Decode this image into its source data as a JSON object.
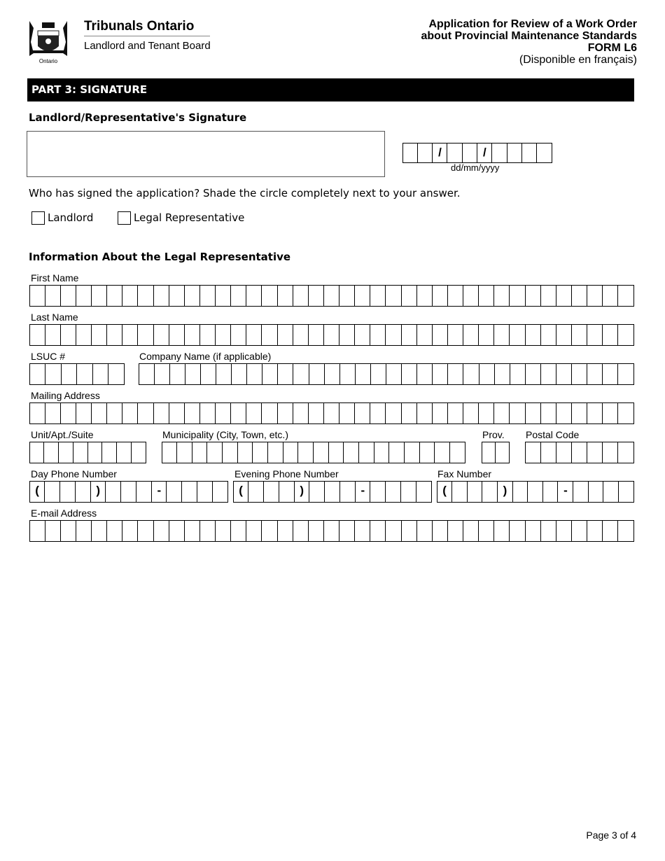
{
  "header": {
    "logo_text": "Ontario",
    "org_name": "Tribunals Ontario",
    "board_name": "Landlord and Tenant Board",
    "form_title_line1": "Application for Review of a Work Order",
    "form_title_line2": "about Provincial Maintenance Standards",
    "form_number": "FORM L6",
    "french_note": "(Disponible en français)"
  },
  "section": {
    "title": "PART 3: SIGNATURE"
  },
  "signature": {
    "heading": "Landlord/Representative's Signature",
    "date_separator": "/",
    "date_format": "dd/mm/yyyy",
    "question": "Who has signed the application? Shade the circle completely next to your answer.",
    "options": [
      "Landlord",
      "Legal Representative"
    ]
  },
  "representative": {
    "heading": "Information About the Legal Representative",
    "first_name_label": "First Name",
    "last_name_label": "Last Name",
    "lsuc_label": "LSUC #",
    "company_label": "Company Name (if applicable)",
    "mailing_label": "Mailing Address",
    "unit_label": "Unit/Apt./Suite",
    "municipality_label": "Municipality (City, Town, etc.)",
    "prov_label": "Prov.",
    "postal_label": "Postal Code",
    "day_phone_label": "Day Phone Number",
    "evening_phone_label": "Evening Phone Number",
    "fax_label": "Fax Number",
    "email_label": "E-mail Address",
    "phone_open": "(",
    "phone_close": ")",
    "phone_dash": "-"
  },
  "footer": {
    "page": "Page 3 of 4"
  }
}
